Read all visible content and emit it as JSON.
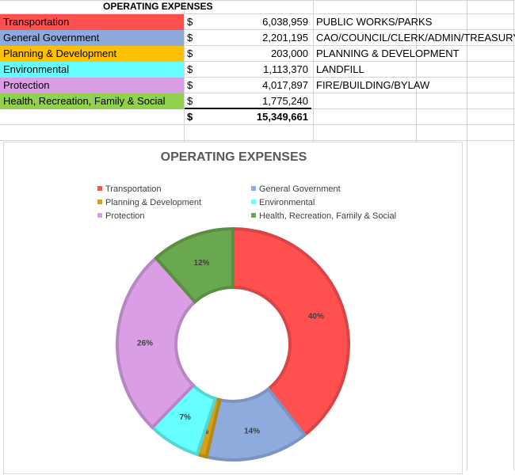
{
  "sheet": {
    "title": "OPERATING EXPENSES",
    "currency_symbol": "$",
    "rows": [
      {
        "label": "Transportation",
        "amount": "6,038,959",
        "description": "PUBLIC WORKS/PARKS",
        "color": "#ff5050"
      },
      {
        "label": "General Government",
        "amount": "2,201,195",
        "description": "CAO/COUNCIL/CLERK/ADMIN/TREASURY",
        "color": "#8ea9db"
      },
      {
        "label": "Planning & Development",
        "amount": "203,000",
        "description": "PLANNING & DEVELOPMENT",
        "color": "#ffc000"
      },
      {
        "label": "Environmental",
        "amount": "1,113,370",
        "description": "LANDFILL",
        "color": "#66ffff"
      },
      {
        "label": "Protection",
        "amount": "4,017,897",
        "description": "FIRE/BUILDING/BYLAW",
        "color": "#da9ee4"
      },
      {
        "label": "Health, Recreation, Family & Social",
        "amount": "1,775,240",
        "description": "",
        "color": "#92d050"
      }
    ],
    "total": "15,349,661"
  },
  "chart_data": {
    "type": "pie",
    "donut": true,
    "title": "OPERATING EXPENSES",
    "categories": [
      "Transportation",
      "General Government",
      "Planning & Development",
      "Environmental",
      "Protection",
      "Health, Recreation, Family & Social"
    ],
    "values": [
      6038959,
      2201195,
      203000,
      1113370,
      4017897,
      1775240
    ],
    "percent_labels": [
      "40%",
      "14%",
      "1%",
      "7%",
      "26%",
      "12%"
    ],
    "colors": [
      "#ff5050",
      "#8faadc",
      "#d4a017",
      "#66ffff",
      "#da9ee4",
      "#6aa84f"
    ],
    "slice_borders": [
      "#d94545",
      "#7a95c4",
      "#b58a12",
      "#55d6d6",
      "#b886c2",
      "#5a8f43"
    ],
    "legend_position": "top"
  }
}
